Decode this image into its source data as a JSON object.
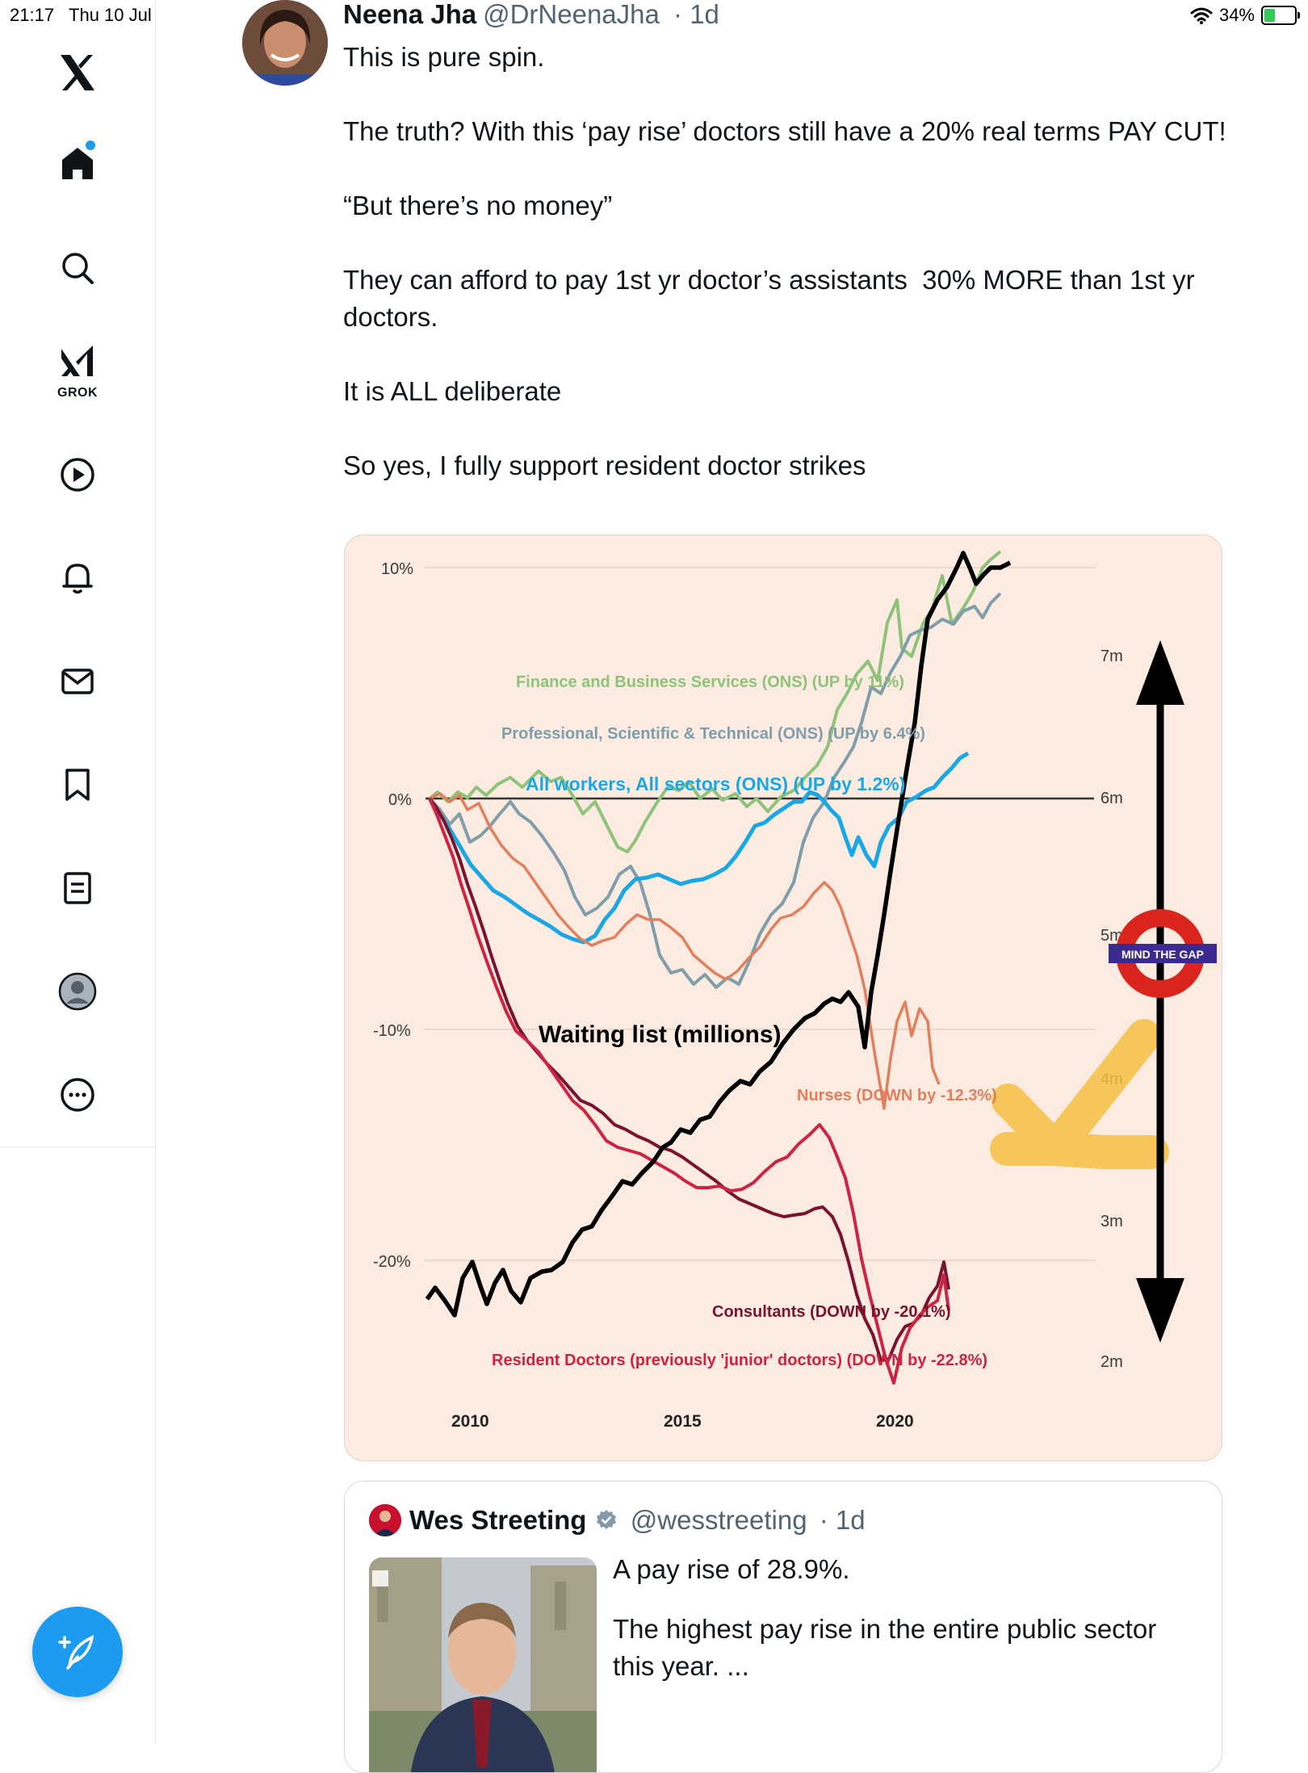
{
  "status_bar": {
    "time": "21:17",
    "date": "Thu 10 Jul",
    "battery": "34%",
    "battery_level": 0.34
  },
  "sidebar": {
    "items": [
      {
        "name": "x-logo-icon"
      },
      {
        "name": "home-icon",
        "active": true
      },
      {
        "name": "search-icon"
      },
      {
        "name": "grok-icon",
        "label": "GROK"
      },
      {
        "name": "video-icon"
      },
      {
        "name": "bell-icon"
      },
      {
        "name": "mail-icon"
      },
      {
        "name": "bookmark-icon"
      },
      {
        "name": "list-icon"
      },
      {
        "name": "profile-icon"
      },
      {
        "name": "more-icon"
      }
    ],
    "compose_icon": "compose-icon",
    "accent": "#1d9bf0"
  },
  "tweet": {
    "author_name": "Neena Jha",
    "handle": "@DrNeenaJha",
    "time": "· 1d",
    "paragraphs": [
      "This is pure spin.",
      "The truth? With this ‘pay rise’ doctors still have a 20% real terms PAY CUT!",
      "“But there’s no money”",
      "They can afford to pay 1st yr doctor’s assistants  30% MORE than 1st yr doctors.",
      "It is ALL deliberate",
      "So yes, I fully support resident doctor strikes"
    ]
  },
  "chart": {
    "left_ticks": [
      "10%",
      "0%",
      "-10%",
      "-20%"
    ],
    "right_ticks": [
      "7m",
      "6m",
      "5m",
      "4m",
      "3m",
      "2m"
    ],
    "x_ticks": [
      "2010",
      "2015",
      "2020"
    ],
    "series_labels": {
      "finance": "Finance and Business Services (ONS) (UP by 11%)",
      "professional": "Professional, Scientific & Technical (ONS) (UP by 6.4%)",
      "all_workers": "All workers, All sectors (ONS) (UP by 1.2%)",
      "waiting": "Waiting list (millions)",
      "nurses": "Nurses (DOWN by -12.3%)",
      "consultants": "Consultants (DOWN by -20.1%)",
      "resident": "Resident Doctors (previously 'junior' doctors) (DOWN by -22.8%)"
    },
    "roundel_text": "MIND THE GAP",
    "colors": {
      "finance": "#8fc27a",
      "professional": "#7f9eaa",
      "all_workers": "#1aa7e6",
      "waiting": "#000000",
      "nurses": "#e0805e",
      "consultants": "#7a1230",
      "resident": "#cc2442",
      "arrow": "#f5c042",
      "roundel": "#dc241f",
      "roundel_bar": "#3b2a8f"
    }
  },
  "quote": {
    "author_name": "Wes Streeting",
    "handle": "@wesstreeting",
    "time": "· 1d",
    "paragraphs": [
      "A pay rise of 28.9%.",
      "The highest pay rise in the entire public sector this year. ..."
    ]
  }
}
